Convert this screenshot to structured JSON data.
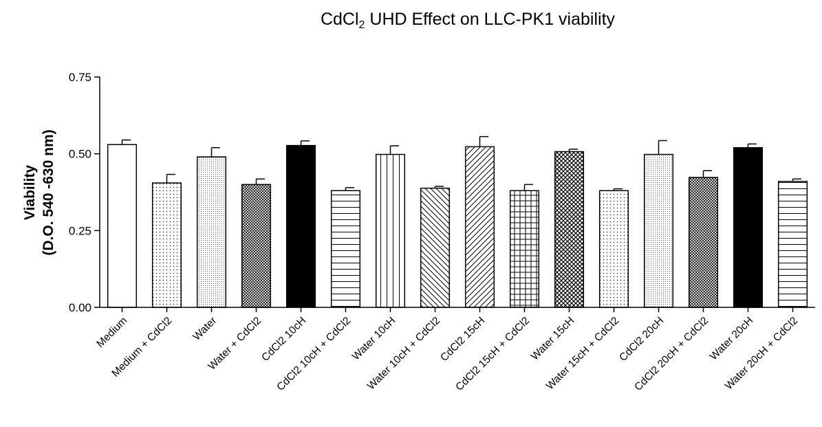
{
  "chart_data": {
    "type": "bar",
    "title": {
      "prefix": "CdCl",
      "subscript": "2",
      "suffix": " UHD Effect on LLC-PK1 viability"
    },
    "ylabel": {
      "line1": "Viability",
      "line2": "(D.O. 540 -630 nm)"
    },
    "xlabel": "",
    "ylim": [
      0,
      0.75
    ],
    "yticks": [
      "0.00",
      "0.25",
      "0.50",
      "0.75"
    ],
    "ytick_values": [
      0,
      0.25,
      0.5,
      0.75
    ],
    "categories": [
      "Medium",
      "Medium + CdCl2",
      "Water",
      "Water + CdCl2",
      "CdCl2 10cH",
      "CdCl2 10cH + CdCl2",
      "Water 10cH",
      "Water 10cH + CdCl2",
      "CdCl2 15cH",
      "CdCl2 15cH + CdCl2",
      "Water 15cH",
      "Water 15cH + CdCl2",
      "CdCl2 20cH",
      "CdCl2 20cH + CdCl2",
      "Water 20cH",
      "Water 20cH + CdCl2"
    ],
    "values": [
      0.53,
      0.405,
      0.49,
      0.4,
      0.527,
      0.38,
      0.498,
      0.388,
      0.523,
      0.38,
      0.507,
      0.38,
      0.498,
      0.423,
      0.52,
      0.41
    ],
    "errors": [
      0.015,
      0.028,
      0.03,
      0.018,
      0.015,
      0.01,
      0.028,
      0.006,
      0.033,
      0.02,
      0.008,
      0.006,
      0.045,
      0.022,
      0.012,
      0.008
    ],
    "patterns": [
      "white",
      "sparse-dots",
      "dense-dots",
      "crosshatch",
      "black",
      "horizontal-lines",
      "vertical-lines",
      "diagonal-back",
      "diagonal-forward",
      "grid",
      "diamond-hatch",
      "sparse-dots",
      "dense-dots",
      "crosshatch",
      "black",
      "horizontal-lines"
    ],
    "grid": false,
    "legend": "none"
  }
}
